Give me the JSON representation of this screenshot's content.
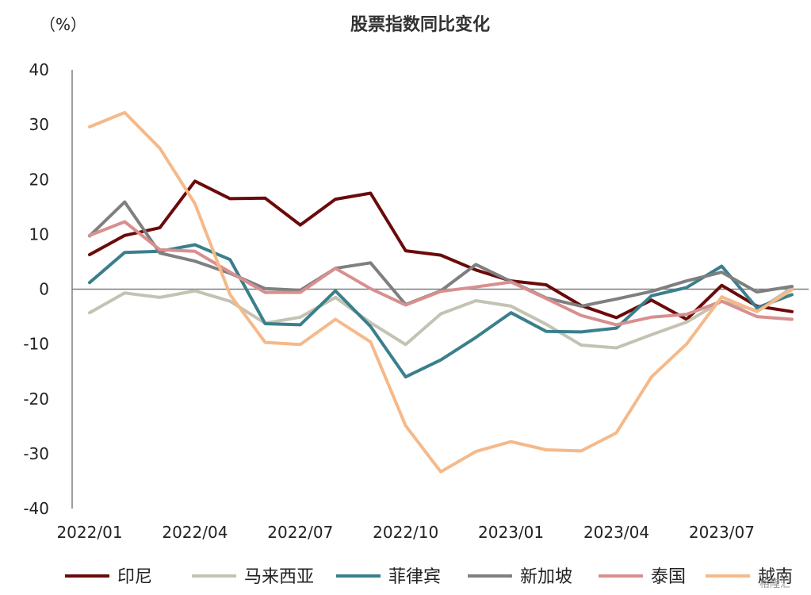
{
  "chart_data": {
    "type": "line",
    "title": "股票指数同比变化",
    "unit_label": "（%）",
    "ylim": [
      -40,
      40
    ],
    "yticks": [
      "40",
      "30",
      "20",
      "10",
      "0",
      "-10",
      "-20",
      "-30",
      "-40"
    ],
    "x": [
      "2022/01",
      "2022/02",
      "2022/03",
      "2022/04",
      "2022/05",
      "2022/06",
      "2022/07",
      "2022/08",
      "2022/09",
      "2022/10",
      "2022/11",
      "2022/12",
      "2023/01",
      "2023/02",
      "2023/03",
      "2023/04",
      "2023/05",
      "2023/06",
      "2023/07",
      "2023/08",
      "2023/09"
    ],
    "xtick_labels": [
      "2022/01",
      "2022/04",
      "2022/07",
      "2022/10",
      "2023/01",
      "2023/04",
      "2023/07"
    ],
    "legend_position": "bottom",
    "series": [
      {
        "name": "印尼",
        "color": "#6B0A0A",
        "values": [
          6.3,
          9.8,
          11.2,
          19.7,
          16.5,
          16.6,
          11.7,
          16.4,
          17.5,
          7.0,
          6.2,
          3.5,
          1.5,
          0.8,
          -3.0,
          -5.2,
          -2.0,
          -5.5,
          0.7,
          -3.1,
          -4.1
        ]
      },
      {
        "name": "马来西亚",
        "color": "#C4C3B3",
        "values": [
          -4.3,
          -0.7,
          -1.5,
          -0.3,
          -2.2,
          -6.2,
          -5.1,
          -1.5,
          -6.1,
          -10.1,
          -4.5,
          -2.1,
          -3.1,
          -6.4,
          -10.2,
          -10.7,
          -8.3,
          -6.0,
          -2.2,
          -3.9,
          0.2
        ]
      },
      {
        "name": "菲律宾",
        "color": "#3A7F8C",
        "values": [
          1.2,
          6.7,
          6.9,
          8.1,
          5.4,
          -6.3,
          -6.5,
          -0.3,
          -6.8,
          -16.0,
          -12.9,
          -8.8,
          -4.3,
          -7.7,
          -7.8,
          -7.1,
          -1.2,
          0.3,
          4.2,
          -3.4,
          -1.0
        ]
      },
      {
        "name": "新加坡",
        "color": "#7F7F7F",
        "values": [
          9.7,
          15.9,
          6.6,
          5.1,
          2.9,
          0.1,
          -0.2,
          3.8,
          4.8,
          -2.8,
          -0.3,
          4.5,
          1.4,
          -1.6,
          -3.1,
          -1.8,
          -0.4,
          1.5,
          3.1,
          -0.5,
          0.5
        ]
      },
      {
        "name": "泰国",
        "color": "#D98F8F",
        "values": [
          9.8,
          12.3,
          7.2,
          6.9,
          3.1,
          -0.6,
          -0.6,
          3.8,
          0.1,
          -2.9,
          -0.4,
          0.4,
          1.3,
          -1.7,
          -4.8,
          -6.5,
          -5.1,
          -4.6,
          -2.2,
          -5.0,
          -5.5
        ]
      },
      {
        "name": "越南",
        "color": "#F5B98A",
        "values": [
          29.6,
          32.2,
          25.7,
          15.6,
          -1.0,
          -9.7,
          -10.1,
          -5.5,
          -9.6,
          -24.9,
          -33.3,
          -29.6,
          -27.8,
          -29.3,
          -29.5,
          -26.2,
          -16.0,
          -10.0,
          -1.4,
          -4.1,
          -0.1
        ]
      }
    ]
  },
  "watermark": "格隆汇"
}
